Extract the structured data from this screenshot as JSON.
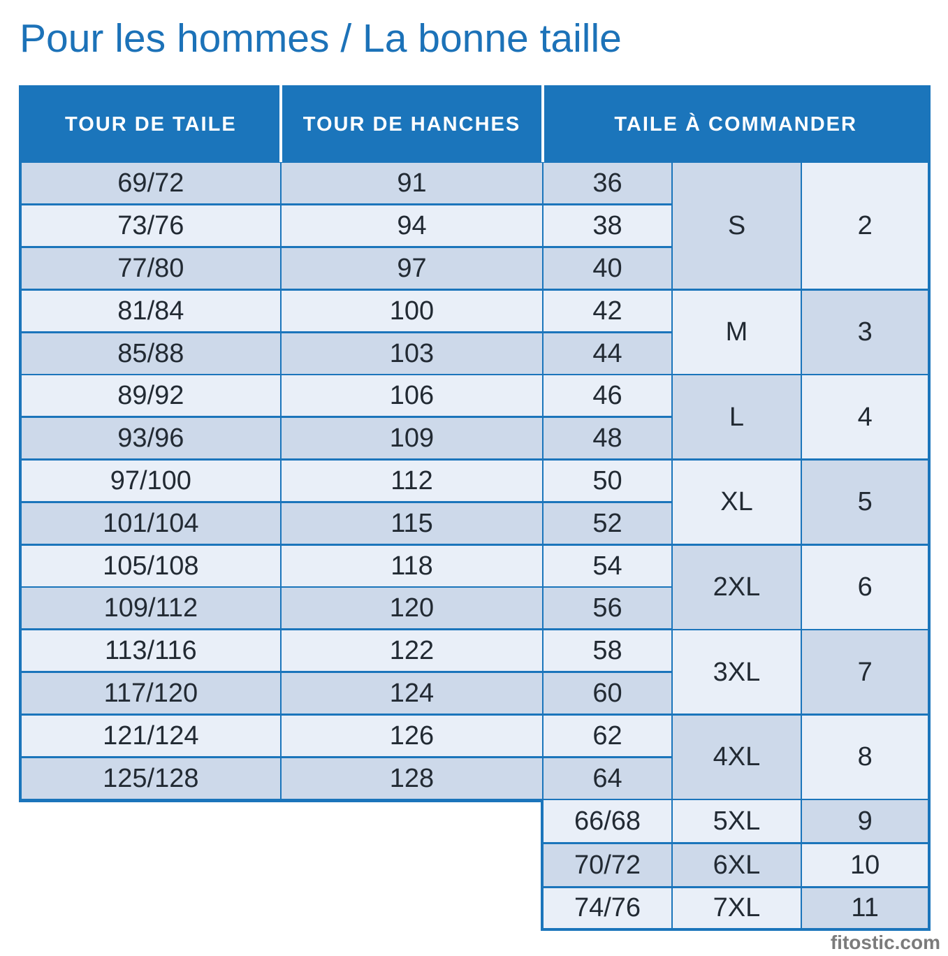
{
  "page": {
    "title": "Pour les hommes / La bonne taille",
    "watermark": "fitostic.com"
  },
  "colors": {
    "header_blue": "#1b75bb",
    "border_blue": "#1b75bb",
    "row_dark": "#cdd9ea",
    "row_light": "#e9eff8",
    "title_blue": "#1c72b8",
    "cell_text": "#222a33",
    "header_text": "#ffffff",
    "watermark_gray": "#7b7b7b"
  },
  "chart_data": {
    "type": "table",
    "title": "Pour les hommes / La bonne taille",
    "columns": [
      "TOUR DE TAILE",
      "TOUR DE HANCHES",
      "TAILE À COMMANDER"
    ],
    "body_rows": [
      {
        "tour_de_taille": "69/72",
        "tour_de_hanches": "91",
        "taille": "36"
      },
      {
        "tour_de_taille": "73/76",
        "tour_de_hanches": "94",
        "taille": "38"
      },
      {
        "tour_de_taille": "77/80",
        "tour_de_hanches": "97",
        "taille": "40"
      },
      {
        "tour_de_taille": "81/84",
        "tour_de_hanches": "100",
        "taille": "42"
      },
      {
        "tour_de_taille": "85/88",
        "tour_de_hanches": "103",
        "taille": "44"
      },
      {
        "tour_de_taille": "89/92",
        "tour_de_hanches": "106",
        "taille": "46"
      },
      {
        "tour_de_taille": "93/96",
        "tour_de_hanches": "109",
        "taille": "48"
      },
      {
        "tour_de_taille": "97/100",
        "tour_de_hanches": "112",
        "taille": "50"
      },
      {
        "tour_de_taille": "101/104",
        "tour_de_hanches": "115",
        "taille": "52"
      },
      {
        "tour_de_taille": "105/108",
        "tour_de_hanches": "118",
        "taille": "54"
      },
      {
        "tour_de_taille": "109/112",
        "tour_de_hanches": "120",
        "taille": "56"
      },
      {
        "tour_de_taille": "113/116",
        "tour_de_hanches": "122",
        "taille": "58"
      },
      {
        "tour_de_taille": "117/120",
        "tour_de_hanches": "124",
        "taille": "60"
      },
      {
        "tour_de_taille": "121/124",
        "tour_de_hanches": "126",
        "taille": "62"
      },
      {
        "tour_de_taille": "125/128",
        "tour_de_hanches": "128",
        "taille": "64"
      }
    ],
    "size_groups": [
      {
        "label": "S",
        "order": "2",
        "span": 3
      },
      {
        "label": "M",
        "order": "3",
        "span": 2
      },
      {
        "label": "L",
        "order": "4",
        "span": 2
      },
      {
        "label": "XL",
        "order": "5",
        "span": 2
      },
      {
        "label": "2XL",
        "order": "6",
        "span": 2
      },
      {
        "label": "3XL",
        "order": "7",
        "span": 2
      },
      {
        "label": "4XL",
        "order": "8",
        "span": 2
      }
    ],
    "extra_rows": [
      {
        "taille": "66/68",
        "label": "5XL",
        "order": "9"
      },
      {
        "taille": "70/72",
        "label": "6XL",
        "order": "10"
      },
      {
        "taille": "74/76",
        "label": "7XL",
        "order": "11"
      }
    ]
  }
}
